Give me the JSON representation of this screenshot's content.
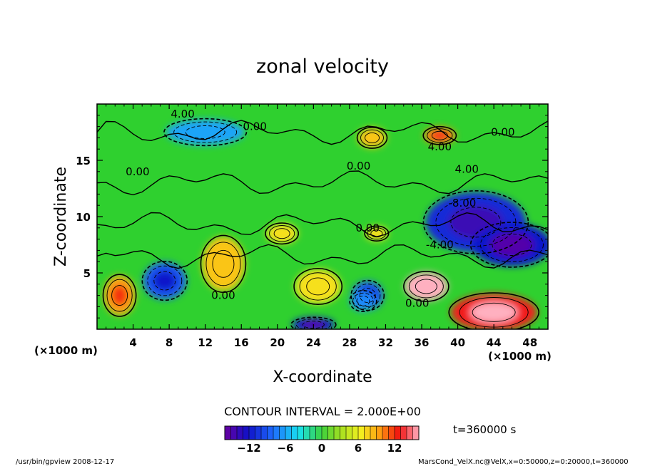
{
  "chart_data": {
    "type": "heatmap",
    "title": "zonal velocity",
    "xlabel": "X-coordinate",
    "ylabel": "Z-coordinate",
    "x_unit": "(×1000 m)",
    "y_unit": "(×1000 m)",
    "xlim": [
      0,
      50
    ],
    "ylim": [
      0,
      20
    ],
    "x_ticks": [
      4,
      8,
      12,
      16,
      20,
      24,
      28,
      32,
      36,
      40,
      44,
      48
    ],
    "y_ticks": [
      5,
      10,
      15
    ],
    "contour_interval_text": "CONTOUR INTERVAL = 2.000E+00",
    "contour_labels": [
      "4.00",
      "0.00",
      "0.00",
      "0.00",
      "4.00",
      "-4.00",
      "-8.00",
      "0.00",
      "4.00",
      "0.00",
      "0.00",
      "0.00"
    ],
    "colorbar": {
      "range": [
        -16,
        16
      ],
      "ticks": [
        -12,
        -6,
        0,
        6,
        12
      ]
    },
    "features": [
      {
        "x": 7.5,
        "z": 4.3,
        "value": -9
      },
      {
        "x": 14,
        "z": 5.8,
        "value": 8
      },
      {
        "x": 24.5,
        "z": 3.8,
        "value": 7
      },
      {
        "x": 30,
        "z": 3.0,
        "value": -9
      },
      {
        "x": 36.5,
        "z": 3.8,
        "value": 16
      },
      {
        "x": 42,
        "z": 9.5,
        "value": -11
      },
      {
        "x": 46,
        "z": 7.5,
        "value": -12
      },
      {
        "x": 44,
        "z": 1.5,
        "value": 13
      },
      {
        "x": 2.5,
        "z": 3.0,
        "value": 9
      },
      {
        "x": 29.5,
        "z": 2.5,
        "value": -7
      },
      {
        "x": 24,
        "z": 0.4,
        "value": -12
      },
      {
        "x": 30.5,
        "z": 17.0,
        "value": 8
      },
      {
        "x": 38,
        "z": 17.2,
        "value": 10
      },
      {
        "x": 12,
        "z": 17.5,
        "value": -6
      },
      {
        "x": 31,
        "z": 8.5,
        "value": 7
      },
      {
        "x": 20.5,
        "z": 8.5,
        "value": 7
      }
    ]
  },
  "time_label": "t=360000 s",
  "footer_left": "/usr/bin/gpview   2008-12-17",
  "footer_right": "MarsCond_VelX.nc@VelX,x=0:50000,z=0:20000,t=360000"
}
